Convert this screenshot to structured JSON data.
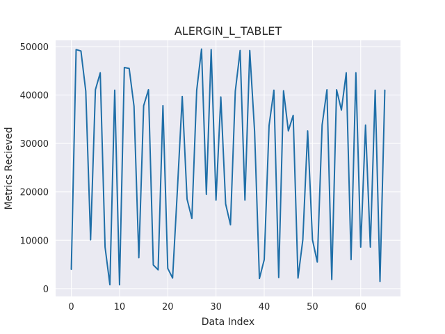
{
  "chart_data": {
    "type": "line",
    "title": "ALERGIN_L_TABLET",
    "xlabel": "Data Index",
    "ylabel": "Metrics Recieved",
    "xlim": [
      -3.25,
      68.25
    ],
    "ylim": [
      -1600,
      51300
    ],
    "xticks": [
      0,
      10,
      20,
      30,
      40,
      50,
      60
    ],
    "yticks": [
      0,
      10000,
      20000,
      30000,
      40000,
      50000
    ],
    "xtick_labels": [
      "0",
      "10",
      "20",
      "30",
      "40",
      "50",
      "60"
    ],
    "ytick_labels": [
      "0",
      "10000",
      "20000",
      "30000",
      "40000",
      "50000"
    ],
    "grid": true,
    "colors": {
      "background": "#eaeaf2",
      "grid": "#ffffff",
      "line": "#1f6fa8",
      "text": "#262626"
    },
    "series": [
      {
        "x": [
          0,
          1,
          2,
          3,
          4,
          5,
          6,
          7,
          8,
          9,
          10,
          11,
          12,
          13,
          14,
          15,
          16,
          17,
          18,
          19,
          20,
          21,
          22,
          23,
          24,
          25,
          26,
          27,
          28,
          29,
          30,
          31,
          32,
          33,
          34,
          35,
          36,
          37,
          38,
          39,
          40,
          41,
          42,
          43,
          44,
          45,
          46,
          47,
          48,
          49,
          50,
          51,
          52,
          53,
          54,
          55,
          56,
          57,
          58,
          59,
          60,
          61,
          62,
          63,
          64,
          65
        ],
        "values": [
          4000,
          49400,
          49100,
          40800,
          10100,
          41100,
          44600,
          8600,
          800,
          41000,
          800,
          45700,
          45500,
          37700,
          6400,
          37800,
          41100,
          4900,
          3900,
          37800,
          4200,
          2200,
          20500,
          39700,
          18500,
          14500,
          41000,
          49500,
          19500,
          49400,
          18300,
          39600,
          17500,
          13200,
          40800,
          49200,
          18300,
          49200,
          32500,
          2100,
          6000,
          33700,
          41000,
          2300,
          40900,
          32600,
          35800,
          2200,
          10100,
          32600,
          10100,
          5500,
          33800,
          41100,
          1900,
          41100,
          36900,
          44600,
          6000,
          44600,
          8600,
          33800,
          8600,
          41000,
          1500,
          41000
        ]
      }
    ]
  }
}
